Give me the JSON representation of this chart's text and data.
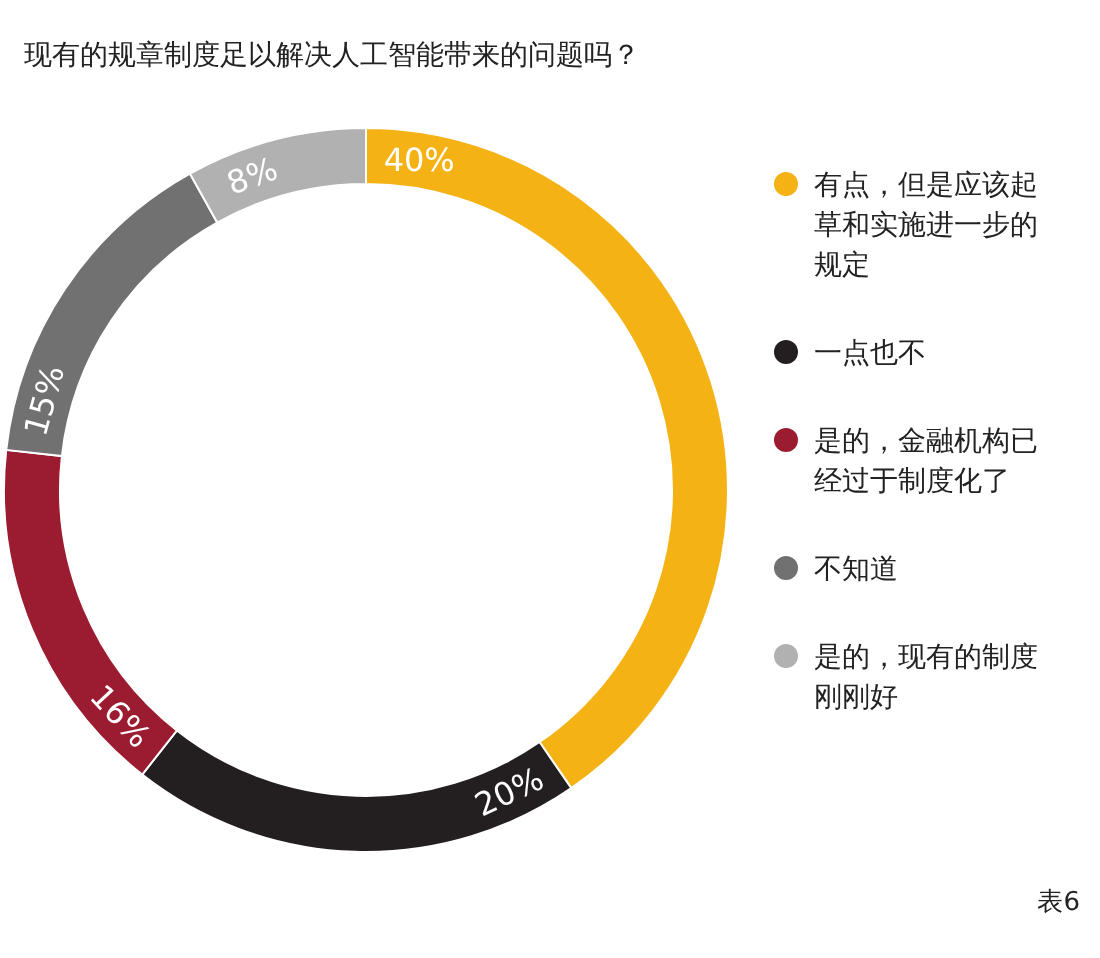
{
  "chart_data": {
    "type": "donut",
    "title": "现有的规章制度足以解决人工智能带来的问题吗？",
    "categories": [
      "有点，但是应该起草和实施进一步的规定",
      "一点也不",
      "是的，金融机构已经过于制度化了",
      "不知道",
      "是的，现有的制度刚刚好"
    ],
    "values": [
      40,
      20,
      16,
      15,
      8
    ],
    "colors": [
      "#f4b215",
      "#231f20",
      "#9b1b30",
      "#717171",
      "#b1b1b1"
    ],
    "value_labels": [
      "40%",
      "20%",
      "16%",
      "15%",
      "8%"
    ],
    "legend": "right",
    "annotations": [
      "表6"
    ]
  }
}
